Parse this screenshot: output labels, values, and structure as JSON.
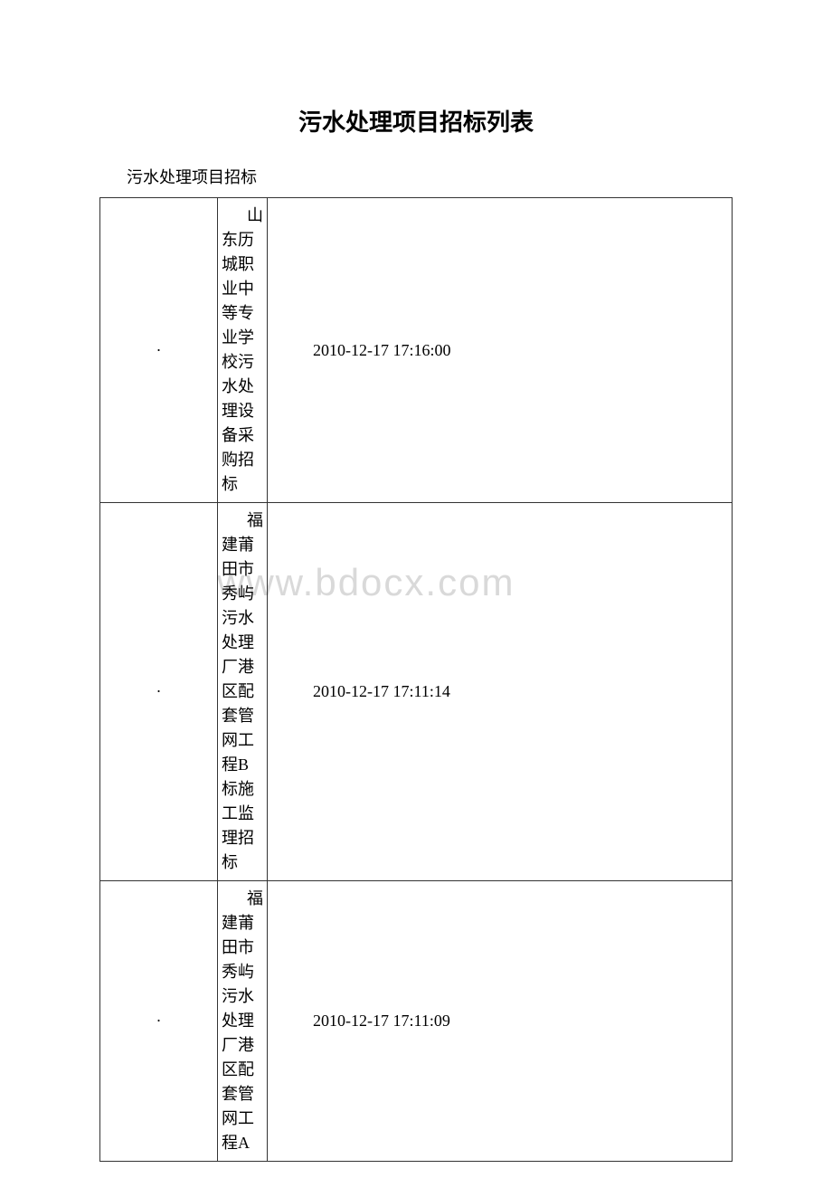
{
  "page": {
    "title": "污水处理项目招标列表",
    "subtitle": "污水处理项目招标",
    "watermark": "www.bdocx.com"
  },
  "table": {
    "rows": [
      {
        "bullet": "·",
        "first_char": "山",
        "description": "东历城职业中等专业学校污水处理设备采购招标",
        "date": "2010-12-17 17:16:00"
      },
      {
        "bullet": "·",
        "first_char": "福",
        "description": "建莆田市秀屿污水处理厂港区配套管网工程B标施工监理招标",
        "date": "2010-12-17 17:11:14"
      },
      {
        "bullet": "·",
        "first_char": "福",
        "description": "建莆田市秀屿污水处理厂港区配套管网工程A",
        "date": "2010-12-17 17:11:09"
      }
    ]
  },
  "styles": {
    "background_color": "#ffffff",
    "border_color": "#333333",
    "text_color": "#000000",
    "watermark_color": "#d9d9d9",
    "title_fontsize": 26,
    "body_fontsize": 18
  }
}
